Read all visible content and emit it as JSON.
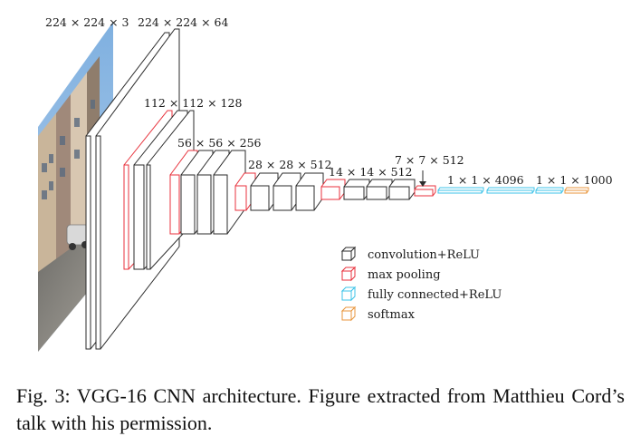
{
  "dimension_labels": {
    "input": "224 × 224 × 3",
    "conv1": "224 × 224 × 64",
    "conv2": "112 × 112 × 128",
    "conv3": "56 × 56 × 256",
    "conv4": "28 × 28 × 512",
    "conv5": "14 × 14 × 512",
    "pool5": "7 × 7 × 512",
    "fc": "1 × 1 × 4096",
    "softmax": "1 × 1 × 1000"
  },
  "legend": {
    "items": [
      {
        "label": "convolution+ReLU",
        "color": "#2b2b2b"
      },
      {
        "label": "max pooling",
        "color": "#e8323c"
      },
      {
        "label": "fully connected+ReLU",
        "color": "#3cc3e8"
      },
      {
        "label": "softmax",
        "color": "#e8963c"
      }
    ]
  },
  "colors": {
    "conv": "#2b2b2b",
    "pool": "#e8323c",
    "fc": "#3cc3e8",
    "softmax": "#e8963c"
  },
  "caption": "Fig. 3: VGG-16 CNN architecture. Figure extracted from Matthieu Cord’s talk with his permission."
}
